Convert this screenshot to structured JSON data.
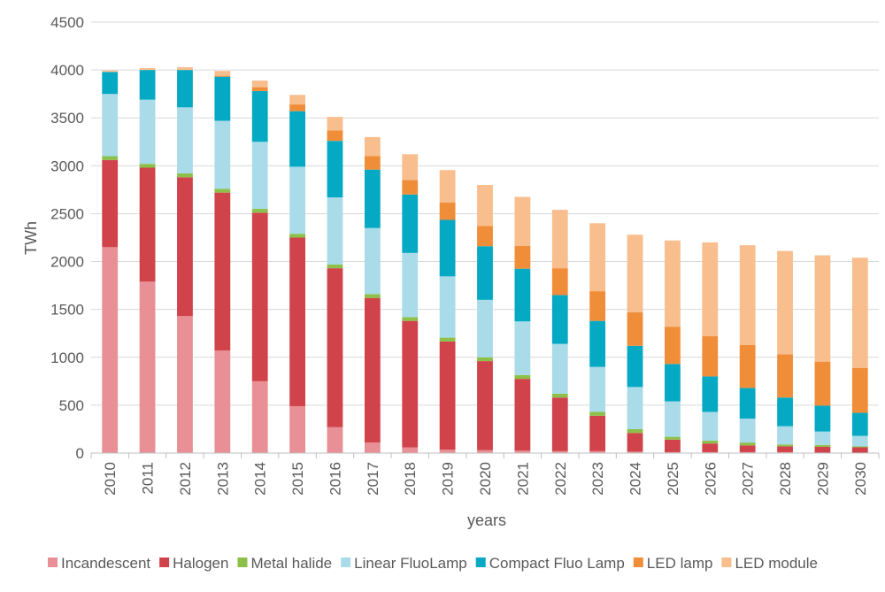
{
  "chart_data": {
    "type": "bar",
    "stacked": true,
    "title": "",
    "xlabel": "years",
    "ylabel": "TWh",
    "ylim": [
      0,
      4500
    ],
    "yticks": [
      0,
      500,
      1000,
      1500,
      2000,
      2500,
      3000,
      3500,
      4000,
      4500
    ],
    "grid": true,
    "legend_position": "bottom",
    "categories": [
      "2010",
      "2011",
      "2012",
      "2013",
      "2014",
      "2015",
      "2016",
      "2017",
      "2018",
      "2019",
      "2020",
      "2021",
      "2022",
      "2023",
      "2024",
      "2025",
      "2026",
      "2027",
      "2028",
      "2029",
      "2030"
    ],
    "series": [
      {
        "name": "Incandescent",
        "color": "#e89096",
        "values": [
          2150,
          1790,
          1430,
          1070,
          750,
          490,
          270,
          110,
          60,
          35,
          30,
          25,
          20,
          20,
          15,
          10,
          10,
          10,
          10,
          5,
          5
        ]
      },
      {
        "name": "Halogen",
        "color": "#d0434a",
        "values": [
          910,
          1190,
          1450,
          1650,
          1760,
          1760,
          1660,
          1510,
          1320,
          1130,
          930,
          750,
          560,
          370,
          195,
          130,
          90,
          70,
          60,
          60,
          55
        ]
      },
      {
        "name": "Metal halide",
        "color": "#8dc04a",
        "values": [
          40,
          40,
          40,
          40,
          40,
          40,
          40,
          40,
          40,
          40,
          40,
          40,
          40,
          40,
          40,
          30,
          30,
          30,
          20,
          20,
          10
        ]
      },
      {
        "name": "Linear FluoLamp",
        "color": "#a9dbe8",
        "values": [
          650,
          670,
          690,
          710,
          700,
          700,
          700,
          690,
          670,
          640,
          600,
          560,
          520,
          470,
          440,
          370,
          300,
          250,
          190,
          140,
          110
        ]
      },
      {
        "name": "Compact Fluo Lamp",
        "color": "#05a9c4",
        "values": [
          230,
          310,
          390,
          460,
          530,
          580,
          590,
          610,
          610,
          590,
          560,
          550,
          510,
          480,
          430,
          390,
          370,
          320,
          300,
          270,
          240
        ]
      },
      {
        "name": "LED lamp",
        "color": "#f08d39",
        "values": [
          0,
          0,
          0,
          10,
          40,
          70,
          110,
          140,
          150,
          180,
          210,
          240,
          280,
          310,
          350,
          390,
          420,
          450,
          450,
          460,
          470
        ]
      },
      {
        "name": "LED module",
        "color": "#f8be8d",
        "values": [
          15,
          20,
          30,
          50,
          70,
          100,
          140,
          200,
          270,
          340,
          430,
          510,
          610,
          710,
          810,
          900,
          980,
          1040,
          1080,
          1110,
          1150
        ]
      }
    ]
  }
}
